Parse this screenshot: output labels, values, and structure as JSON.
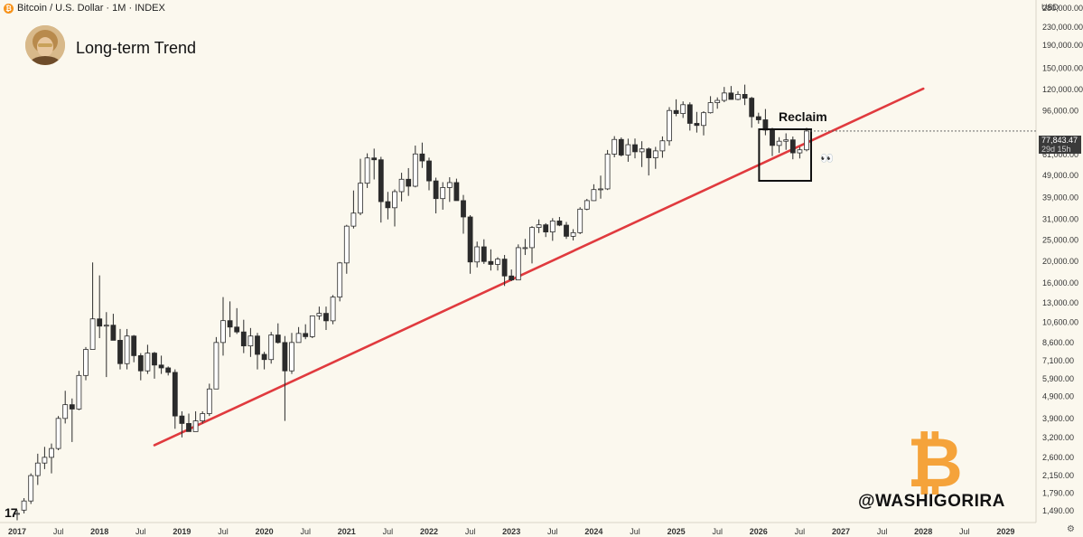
{
  "header": {
    "symbol_line": "Bitcoin / U.S. Dollar · 1M · INDEX",
    "symbol_icon": "bitcoin-icon"
  },
  "title": "Long-term Trend",
  "currency": "USD",
  "last_price": "77,843.47",
  "countdown": "29d 15h",
  "annotation": "Reclaim",
  "eyes": "👀",
  "handle": "@WASHIGORIRA",
  "watermark_glyph": "₿",
  "tv_logo": "17",
  "settings_icon": "⚙",
  "colors": {
    "background": "#fbf8ee",
    "trendline": "#e03a3e",
    "up_candle": "#ffffff",
    "down_candle": "#2b2b2b",
    "brand_orange": "#f7931a"
  },
  "chart_data": {
    "type": "candlestick",
    "title": "Long-term Trend",
    "timeframe": "1M",
    "scale": "log",
    "y_ticks": [
      "280,000.00",
      "230,000.00",
      "190,000.00",
      "150,000.00",
      "120,000.00",
      "96,000.00",
      "61,000.00",
      "49,000.00",
      "39,000.00",
      "31,000.00",
      "25,000.00",
      "20,000.00",
      "16,000.00",
      "13,000.00",
      "10,600.00",
      "8,600.00",
      "7,100.00",
      "5,900.00",
      "4,900.00",
      "3,900.00",
      "3,200.00",
      "2,600.00",
      "2,150.00",
      "1,790.00",
      "1,490.00"
    ],
    "x_ticks": [
      "2017",
      "Jul",
      "2018",
      "Jul",
      "2019",
      "Jul",
      "2020",
      "Jul",
      "2021",
      "Jul",
      "2022",
      "Jul",
      "2023",
      "Jul",
      "2024",
      "Jul",
      "2025",
      "Jul",
      "2026",
      "Jul",
      "2027",
      "Jul",
      "2028",
      "Jul",
      "2029"
    ],
    "ohlc": [
      [
        1450,
        1500,
        1350,
        1450
      ],
      [
        1500,
        1700,
        1450,
        1650
      ],
      [
        1650,
        2200,
        1600,
        2150
      ],
      [
        2150,
        2700,
        1950,
        2450
      ],
      [
        2450,
        2900,
        2300,
        2600
      ],
      [
        2600,
        3000,
        2200,
        2850
      ],
      [
        2850,
        4000,
        2800,
        3900
      ],
      [
        3900,
        5200,
        3700,
        4500
      ],
      [
        4500,
        4800,
        3050,
        4300
      ],
      [
        4300,
        6400,
        4250,
        6100
      ],
      [
        6100,
        8200,
        5800,
        8000
      ],
      [
        8000,
        19800,
        8000,
        11000
      ],
      [
        11000,
        17300,
        9000,
        10200
      ],
      [
        10200,
        11800,
        6000,
        10300
      ],
      [
        10300,
        11600,
        8800,
        8800
      ],
      [
        8800,
        9900,
        6500,
        6900
      ],
      [
        6900,
        9900,
        6500,
        9200
      ],
      [
        9200,
        9300,
        7000,
        7500
      ],
      [
        7500,
        7700,
        5800,
        6400
      ],
      [
        6400,
        8400,
        6200,
        7700
      ],
      [
        7700,
        7800,
        5900,
        6800
      ],
      [
        6800,
        7500,
        6200,
        6600
      ],
      [
        6600,
        6700,
        6100,
        6300
      ],
      [
        6300,
        6500,
        3500,
        4000
      ],
      [
        4000,
        4200,
        3200,
        3700
      ],
      [
        3700,
        4100,
        3400,
        3400
      ],
      [
        3400,
        4200,
        3400,
        3800
      ],
      [
        3800,
        4200,
        3700,
        4100
      ],
      [
        4100,
        5600,
        4000,
        5300
      ],
      [
        5300,
        9100,
        5300,
        8600
      ],
      [
        8600,
        13800,
        7500,
        10800
      ],
      [
        10800,
        13200,
        9100,
        10100
      ],
      [
        10100,
        12300,
        9400,
        9600
      ],
      [
        9600,
        10900,
        7700,
        8300
      ],
      [
        8300,
        10000,
        7400,
        9200
      ],
      [
        9200,
        9500,
        6500,
        7600
      ],
      [
        7600,
        7800,
        6500,
        7200
      ],
      [
        7200,
        9600,
        6900,
        9300
      ],
      [
        9300,
        10500,
        8500,
        8600
      ],
      [
        8600,
        9200,
        3800,
        6400
      ],
      [
        6400,
        9500,
        6200,
        8600
      ],
      [
        8600,
        10100,
        8600,
        9450
      ],
      [
        9450,
        10400,
        8900,
        9140
      ],
      [
        9140,
        11400,
        9000,
        11350
      ],
      [
        11350,
        12500,
        10900,
        11650
      ],
      [
        11650,
        12500,
        9800,
        10780
      ],
      [
        10780,
        14100,
        10400,
        13800
      ],
      [
        13800,
        19900,
        13200,
        19700
      ],
      [
        19700,
        29300,
        17600,
        28900
      ],
      [
        28900,
        41900,
        28200,
        33100
      ],
      [
        33100,
        58300,
        32400,
        45200
      ],
      [
        45200,
        61700,
        43000,
        58800
      ],
      [
        58800,
        64800,
        47000,
        57700
      ],
      [
        57700,
        59500,
        30000,
        37300
      ],
      [
        37300,
        41300,
        31000,
        35000
      ],
      [
        35000,
        42400,
        28800,
        41400
      ],
      [
        41400,
        50400,
        37400,
        47100
      ],
      [
        47100,
        52900,
        39600,
        43800
      ],
      [
        43800,
        66900,
        43300,
        61300
      ],
      [
        61300,
        69000,
        53000,
        57000
      ],
      [
        57000,
        59000,
        42000,
        46300
      ],
      [
        46300,
        47900,
        33000,
        38500
      ],
      [
        38500,
        45700,
        34300,
        43200
      ],
      [
        43200,
        48100,
        37200,
        45500
      ],
      [
        45500,
        47400,
        37700,
        37700
      ],
      [
        37700,
        40000,
        26700,
        31800
      ],
      [
        31800,
        32400,
        17600,
        19900
      ],
      [
        19900,
        24600,
        18800,
        23300
      ],
      [
        23300,
        25200,
        19500,
        20000
      ],
      [
        20000,
        22700,
        18200,
        19400
      ],
      [
        19400,
        20900,
        18200,
        20500
      ],
      [
        20500,
        21400,
        15500,
        17200
      ],
      [
        17200,
        18400,
        16300,
        16500
      ],
      [
        16500,
        23900,
        16500,
        23100
      ],
      [
        23100,
        25300,
        21400,
        23100
      ],
      [
        23100,
        28900,
        19600,
        28500
      ],
      [
        28500,
        31000,
        26900,
        29300
      ],
      [
        29300,
        29800,
        25800,
        27200
      ],
      [
        27200,
        31400,
        24800,
        30500
      ],
      [
        30500,
        31800,
        28900,
        29200
      ],
      [
        29200,
        30200,
        25300,
        26000
      ],
      [
        26000,
        28000,
        24900,
        27000
      ],
      [
        27000,
        35200,
        26600,
        34500
      ],
      [
        34500,
        38400,
        34100,
        37700
      ],
      [
        37700,
        44700,
        37600,
        42300
      ],
      [
        42300,
        48900,
        38500,
        42600
      ],
      [
        42600,
        63900,
        42100,
        61200
      ],
      [
        61200,
        73800,
        59200,
        71300
      ],
      [
        71300,
        72800,
        59700,
        60600
      ],
      [
        60600,
        71900,
        56500,
        67500
      ],
      [
        67500,
        72000,
        58600,
        62700
      ],
      [
        62700,
        70000,
        53500,
        64600
      ],
      [
        64600,
        65600,
        49000,
        58900
      ],
      [
        58900,
        66000,
        52500,
        63300
      ],
      [
        63300,
        73600,
        58900,
        70300
      ],
      [
        70300,
        99800,
        66800,
        96400
      ],
      [
        96400,
        108300,
        90800,
        93400
      ],
      [
        93400,
        106000,
        89200,
        102400
      ],
      [
        102400,
        105000,
        78200,
        84300
      ],
      [
        84300,
        95000,
        76600,
        82500
      ],
      [
        82500,
        95700,
        74400,
        94200
      ],
      [
        94200,
        111900,
        93400,
        104600
      ],
      [
        104600,
        110500,
        98200,
        107100
      ],
      [
        107100,
        123200,
        105100,
        115700
      ],
      [
        115700,
        124400,
        108100,
        108200
      ],
      [
        108200,
        117900,
        107300,
        114000
      ],
      [
        114000,
        126200,
        102000,
        109600
      ],
      [
        109600,
        111100,
        80600,
        90400
      ],
      [
        90400,
        94200,
        84000,
        87500
      ],
      [
        87500,
        97900,
        74500,
        78600
      ],
      [
        78600,
        80500,
        60000,
        67000
      ],
      [
        67000,
        73000,
        62000,
        70000
      ],
      [
        70000,
        76000,
        64000,
        71000
      ],
      [
        71000,
        73500,
        58000,
        62000
      ],
      [
        62000,
        66000,
        58500,
        64000
      ],
      [
        64000,
        80500,
        63000,
        77843
      ]
    ],
    "trendline": {
      "from": {
        "date": "2018-09",
        "price": 2950
      },
      "to": {
        "date": "2028-01",
        "price": 121000
      }
    },
    "highlight_box": {
      "from": "2026-02",
      "to": "2026-08",
      "label": "Reclaim"
    }
  }
}
